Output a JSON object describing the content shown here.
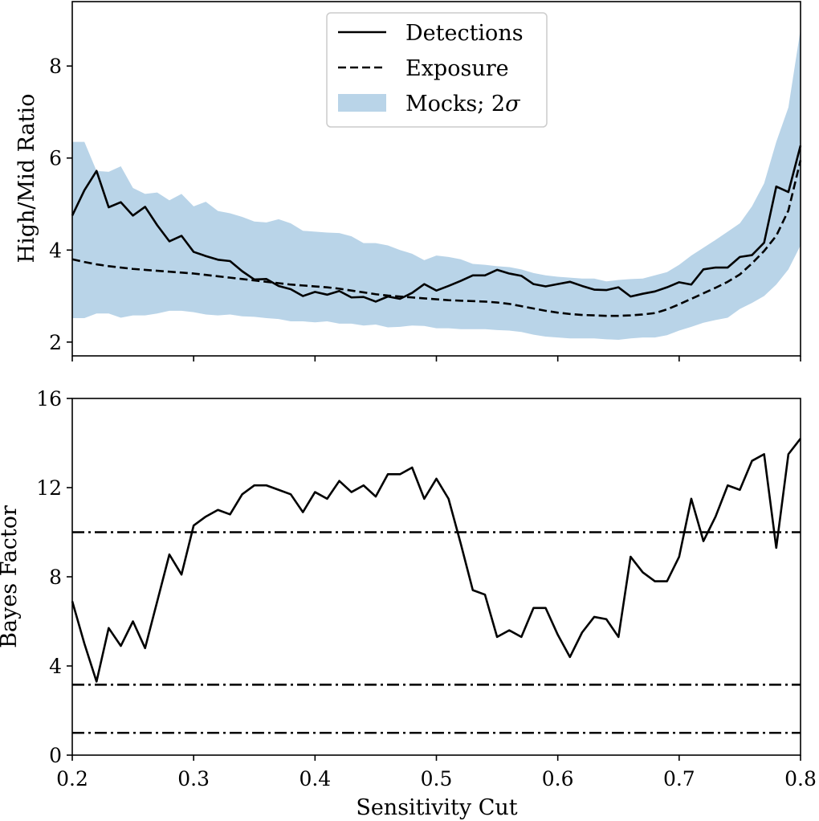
{
  "chart_data": [
    {
      "type": "line",
      "panel": "top",
      "title": "",
      "xlabel": "",
      "ylabel": "High/Mid Ratio",
      "xlim": [
        0.2,
        0.8
      ],
      "ylim": [
        1.7,
        9.4
      ],
      "yticks": [
        2,
        4,
        6,
        8
      ],
      "ytick_labels": [
        "2",
        "4",
        "6",
        "8"
      ],
      "xticks": [
        0.2,
        0.3,
        0.4,
        0.5,
        0.6,
        0.7,
        0.8
      ],
      "grid": false,
      "legend": {
        "placement": "top-center",
        "entries": [
          {
            "label": "Detections",
            "style": "solid",
            "color": "#000000"
          },
          {
            "label": "Exposure",
            "style": "dashed",
            "color": "#000000"
          },
          {
            "label": "Mocks; 2",
            "label_symbol": "σ",
            "style": "band",
            "color": "#b9d4e8"
          }
        ]
      },
      "x": [
        0.2,
        0.21,
        0.22,
        0.23,
        0.24,
        0.25,
        0.26,
        0.27,
        0.28,
        0.29,
        0.3,
        0.31,
        0.32,
        0.33,
        0.34,
        0.35,
        0.36,
        0.37,
        0.38,
        0.39,
        0.4,
        0.41,
        0.42,
        0.43,
        0.44,
        0.45,
        0.46,
        0.47,
        0.48,
        0.49,
        0.5,
        0.51,
        0.52,
        0.53,
        0.54,
        0.55,
        0.56,
        0.57,
        0.58,
        0.59,
        0.6,
        0.61,
        0.62,
        0.63,
        0.64,
        0.65,
        0.66,
        0.67,
        0.68,
        0.69,
        0.7,
        0.71,
        0.72,
        0.73,
        0.74,
        0.75,
        0.76,
        0.77,
        0.78,
        0.79,
        0.8
      ],
      "series": [
        {
          "name": "Detections",
          "style": "solid",
          "values": [
            4.75,
            5.3,
            5.72,
            4.93,
            5.04,
            4.75,
            4.94,
            4.54,
            4.19,
            4.31,
            3.96,
            3.87,
            3.79,
            3.76,
            3.54,
            3.36,
            3.37,
            3.22,
            3.15,
            3.0,
            3.09,
            3.03,
            3.11,
            2.97,
            2.98,
            2.88,
            2.99,
            2.94,
            3.07,
            3.26,
            3.12,
            3.22,
            3.33,
            3.45,
            3.45,
            3.57,
            3.49,
            3.44,
            3.26,
            3.21,
            3.26,
            3.31,
            3.22,
            3.14,
            3.13,
            3.19,
            2.99,
            3.05,
            3.1,
            3.19,
            3.3,
            3.25,
            3.58,
            3.62,
            3.62,
            3.85,
            3.89,
            4.16,
            5.38,
            5.26,
            6.27
          ]
        },
        {
          "name": "Exposure",
          "style": "dashed",
          "values": [
            3.8,
            3.74,
            3.69,
            3.65,
            3.62,
            3.59,
            3.57,
            3.55,
            3.53,
            3.51,
            3.49,
            3.46,
            3.43,
            3.4,
            3.37,
            3.34,
            3.31,
            3.28,
            3.25,
            3.23,
            3.21,
            3.19,
            3.16,
            3.12,
            3.08,
            3.04,
            3.01,
            2.99,
            2.97,
            2.95,
            2.93,
            2.91,
            2.9,
            2.89,
            2.88,
            2.86,
            2.83,
            2.78,
            2.73,
            2.68,
            2.64,
            2.61,
            2.59,
            2.58,
            2.57,
            2.57,
            2.58,
            2.6,
            2.63,
            2.71,
            2.82,
            2.94,
            3.06,
            3.18,
            3.31,
            3.47,
            3.71,
            3.98,
            4.31,
            4.86,
            5.95
          ]
        },
        {
          "name": "Mocks upper 2σ",
          "style": "band-upper",
          "values": [
            6.35,
            6.35,
            5.72,
            5.7,
            5.82,
            5.35,
            5.22,
            5.25,
            5.08,
            5.22,
            4.95,
            5.05,
            4.85,
            4.8,
            4.72,
            4.62,
            4.6,
            4.67,
            4.58,
            4.42,
            4.4,
            4.38,
            4.37,
            4.3,
            4.15,
            4.15,
            4.1,
            4.0,
            3.92,
            3.78,
            3.88,
            3.85,
            3.8,
            3.7,
            3.68,
            3.65,
            3.63,
            3.58,
            3.5,
            3.45,
            3.42,
            3.4,
            3.38,
            3.38,
            3.32,
            3.35,
            3.37,
            3.38,
            3.45,
            3.52,
            3.68,
            3.88,
            4.05,
            4.22,
            4.4,
            4.58,
            4.95,
            5.45,
            6.35,
            7.1,
            8.8
          ]
        },
        {
          "name": "Mocks lower 2σ",
          "style": "band-lower",
          "values": [
            2.52,
            2.52,
            2.62,
            2.62,
            2.53,
            2.58,
            2.58,
            2.62,
            2.68,
            2.68,
            2.65,
            2.6,
            2.58,
            2.6,
            2.56,
            2.55,
            2.52,
            2.5,
            2.45,
            2.45,
            2.43,
            2.45,
            2.4,
            2.4,
            2.36,
            2.38,
            2.32,
            2.33,
            2.36,
            2.35,
            2.3,
            2.3,
            2.28,
            2.28,
            2.28,
            2.26,
            2.25,
            2.22,
            2.16,
            2.12,
            2.1,
            2.08,
            2.08,
            2.08,
            2.06,
            2.05,
            2.08,
            2.1,
            2.1,
            2.15,
            2.25,
            2.33,
            2.42,
            2.48,
            2.53,
            2.72,
            2.85,
            3.0,
            3.25,
            3.58,
            4.1
          ]
        }
      ]
    },
    {
      "type": "line",
      "panel": "bottom",
      "title": "",
      "xlabel": "Sensitivity Cut",
      "ylabel": "Bayes Factor",
      "xlim": [
        0.2,
        0.8
      ],
      "ylim": [
        0,
        16
      ],
      "yticks": [
        0,
        4,
        8,
        12,
        16
      ],
      "ytick_labels": [
        "0",
        "4",
        "8",
        "12",
        "16"
      ],
      "xticks": [
        0.2,
        0.3,
        0.4,
        0.5,
        0.6,
        0.7,
        0.8
      ],
      "xtick_labels": [
        "0.2",
        "0.3",
        "0.4",
        "0.5",
        "0.6",
        "0.7",
        "0.8"
      ],
      "grid": false,
      "hlines": [
        {
          "y": 1.0,
          "style": "dashdot"
        },
        {
          "y": 3.16,
          "style": "dashdot"
        },
        {
          "y": 10.0,
          "style": "dashdot"
        }
      ],
      "x": [
        0.2,
        0.21,
        0.22,
        0.23,
        0.24,
        0.25,
        0.26,
        0.27,
        0.28,
        0.29,
        0.3,
        0.31,
        0.32,
        0.33,
        0.34,
        0.35,
        0.36,
        0.37,
        0.38,
        0.39,
        0.4,
        0.41,
        0.42,
        0.43,
        0.44,
        0.45,
        0.46,
        0.47,
        0.48,
        0.49,
        0.5,
        0.51,
        0.52,
        0.53,
        0.54,
        0.55,
        0.56,
        0.57,
        0.58,
        0.59,
        0.6,
        0.61,
        0.62,
        0.63,
        0.64,
        0.65,
        0.66,
        0.67,
        0.68,
        0.69,
        0.7,
        0.71,
        0.72,
        0.73,
        0.74,
        0.75,
        0.76,
        0.77,
        0.78,
        0.79,
        0.8
      ],
      "series": [
        {
          "name": "Bayes Factor",
          "style": "solid",
          "values": [
            6.9,
            5.0,
            3.3,
            5.7,
            4.9,
            6.0,
            4.8,
            6.9,
            9.0,
            8.1,
            10.3,
            10.7,
            11.0,
            10.8,
            11.7,
            12.1,
            12.1,
            11.9,
            11.7,
            10.9,
            11.8,
            11.5,
            12.3,
            11.8,
            12.1,
            11.6,
            12.6,
            12.6,
            12.9,
            11.5,
            12.4,
            11.5,
            9.5,
            7.4,
            7.2,
            5.3,
            5.6,
            5.3,
            6.6,
            6.6,
            5.4,
            4.4,
            5.5,
            6.2,
            6.1,
            5.3,
            8.9,
            8.2,
            7.8,
            7.8,
            8.9,
            11.5,
            9.6,
            10.7,
            12.1,
            11.9,
            13.2,
            13.5,
            9.3,
            13.5,
            14.2
          ]
        }
      ]
    }
  ]
}
